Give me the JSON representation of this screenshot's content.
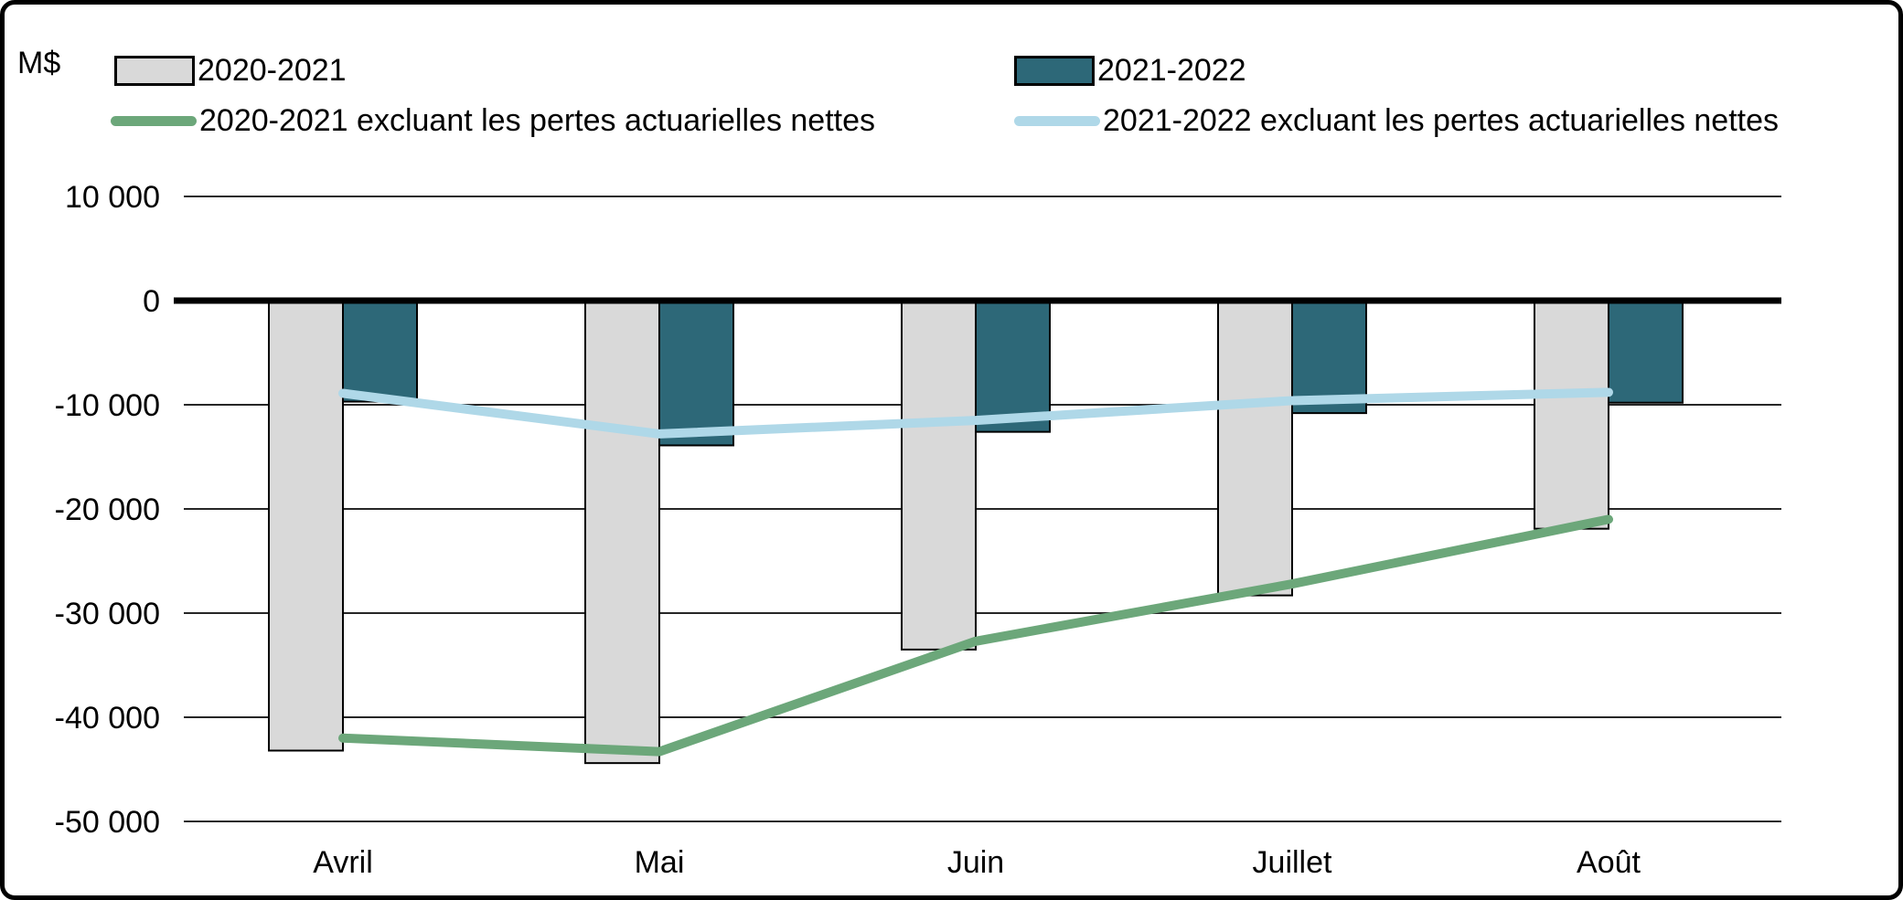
{
  "unit": "M$",
  "legend": {
    "items": [
      {
        "label": "2020-2021",
        "swatch": "box",
        "color": "#D9D9D9"
      },
      {
        "label": "2021-2022",
        "swatch": "box",
        "color": "#2D6878"
      },
      {
        "label": "2020-2021 excluant les pertes actuarielles nettes",
        "swatch": "line",
        "color": "#6CA77A"
      },
      {
        "label": "2021-2022 excluant les pertes actuarielles nettes",
        "swatch": "line",
        "color": "#AFD8E8"
      }
    ]
  },
  "chart_data": {
    "type": "bar+line",
    "categories": [
      "Avril",
      "Mai",
      "Juin",
      "Juillet",
      "Août"
    ],
    "series": [
      {
        "name": "2020-2021",
        "type": "bar",
        "color": "#D9D9D9",
        "values": [
          -43200,
          -44400,
          -33500,
          -28300,
          -21900
        ]
      },
      {
        "name": "2021-2022",
        "type": "bar",
        "color": "#2D6878",
        "values": [
          -9700,
          -13900,
          -12600,
          -10800,
          -9800
        ]
      },
      {
        "name": "2020-2021 excluant les pertes actuarielles nettes",
        "type": "line",
        "color": "#6CA77A",
        "values": [
          -42000,
          -43300,
          -32700,
          -27200,
          -21000
        ]
      },
      {
        "name": "2021-2022 excluant les pertes actuarielles nettes",
        "type": "line",
        "color": "#AFD8E8",
        "values": [
          -8900,
          -12800,
          -11500,
          -9600,
          -8800
        ]
      }
    ],
    "title": "",
    "xlabel": "",
    "ylabel": "M$",
    "ylim": [
      -50000,
      10000
    ],
    "y_tick_step": 10000,
    "y_tick_labels": [
      "10 000",
      "0",
      "-10 000",
      "-20 000",
      "-30 000",
      "-40 000",
      "-50 000"
    ],
    "grid": true,
    "legend_position": "top",
    "zero_line": true
  }
}
